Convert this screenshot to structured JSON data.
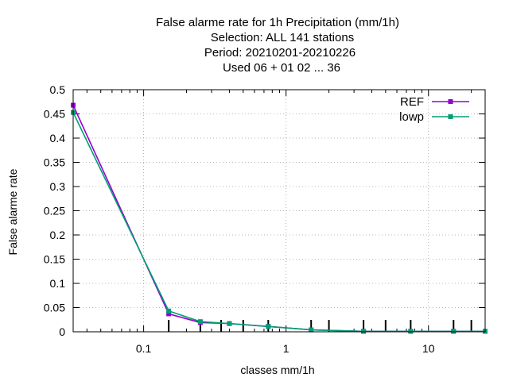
{
  "chart_data": {
    "type": "line",
    "title_lines": [
      "False alarme rate  for 1h Precipitation (mm/1h)",
      "Selection: ALL     141 stations",
      "Period: 20210201-20210226",
      "Used  06  + 01 02 ... 36"
    ],
    "xlabel": "classes mm/1h",
    "ylabel": "False alarme rate",
    "x_scale": "log",
    "xlim": [
      0.032,
      25
    ],
    "ylim": [
      0,
      0.5
    ],
    "x_ticks": [
      {
        "value": 0.1,
        "label": "0.1"
      },
      {
        "value": 1,
        "label": "1"
      },
      {
        "value": 10,
        "label": "10"
      }
    ],
    "y_ticks": [
      {
        "value": 0,
        "label": "0"
      },
      {
        "value": 0.05,
        "label": "0.05"
      },
      {
        "value": 0.1,
        "label": "0.1"
      },
      {
        "value": 0.15,
        "label": "0.15"
      },
      {
        "value": 0.2,
        "label": "0.2"
      },
      {
        "value": 0.25,
        "label": "0.25"
      },
      {
        "value": 0.3,
        "label": "0.3"
      },
      {
        "value": 0.35,
        "label": "0.35"
      },
      {
        "value": 0.4,
        "label": "0.4"
      },
      {
        "value": 0.45,
        "label": "0.45"
      },
      {
        "value": 0.5,
        "label": "0.5"
      }
    ],
    "grid": true,
    "legend_position": "top-right",
    "x_minor_marks": [
      0.15,
      0.25,
      0.35,
      0.5,
      0.75,
      1.5,
      2,
      3.5,
      5,
      7.5,
      15,
      20
    ],
    "series": [
      {
        "name": "REF",
        "color": "#9400d3",
        "x": [
          0.032,
          0.15,
          0.25,
          0.4,
          0.75,
          1.5,
          3.5,
          7.5,
          15,
          25
        ],
        "y": [
          0.468,
          0.037,
          0.019,
          0.017,
          0.011,
          0.004,
          0.001,
          0.001,
          0.001,
          0.001
        ]
      },
      {
        "name": "lowp",
        "color": "#009e73",
        "x": [
          0.032,
          0.15,
          0.25,
          0.4,
          0.75,
          1.5,
          3.5,
          7.5,
          15,
          25
        ],
        "y": [
          0.453,
          0.043,
          0.021,
          0.017,
          0.011,
          0.004,
          0.001,
          0.001,
          0.001,
          0.001
        ]
      }
    ]
  }
}
